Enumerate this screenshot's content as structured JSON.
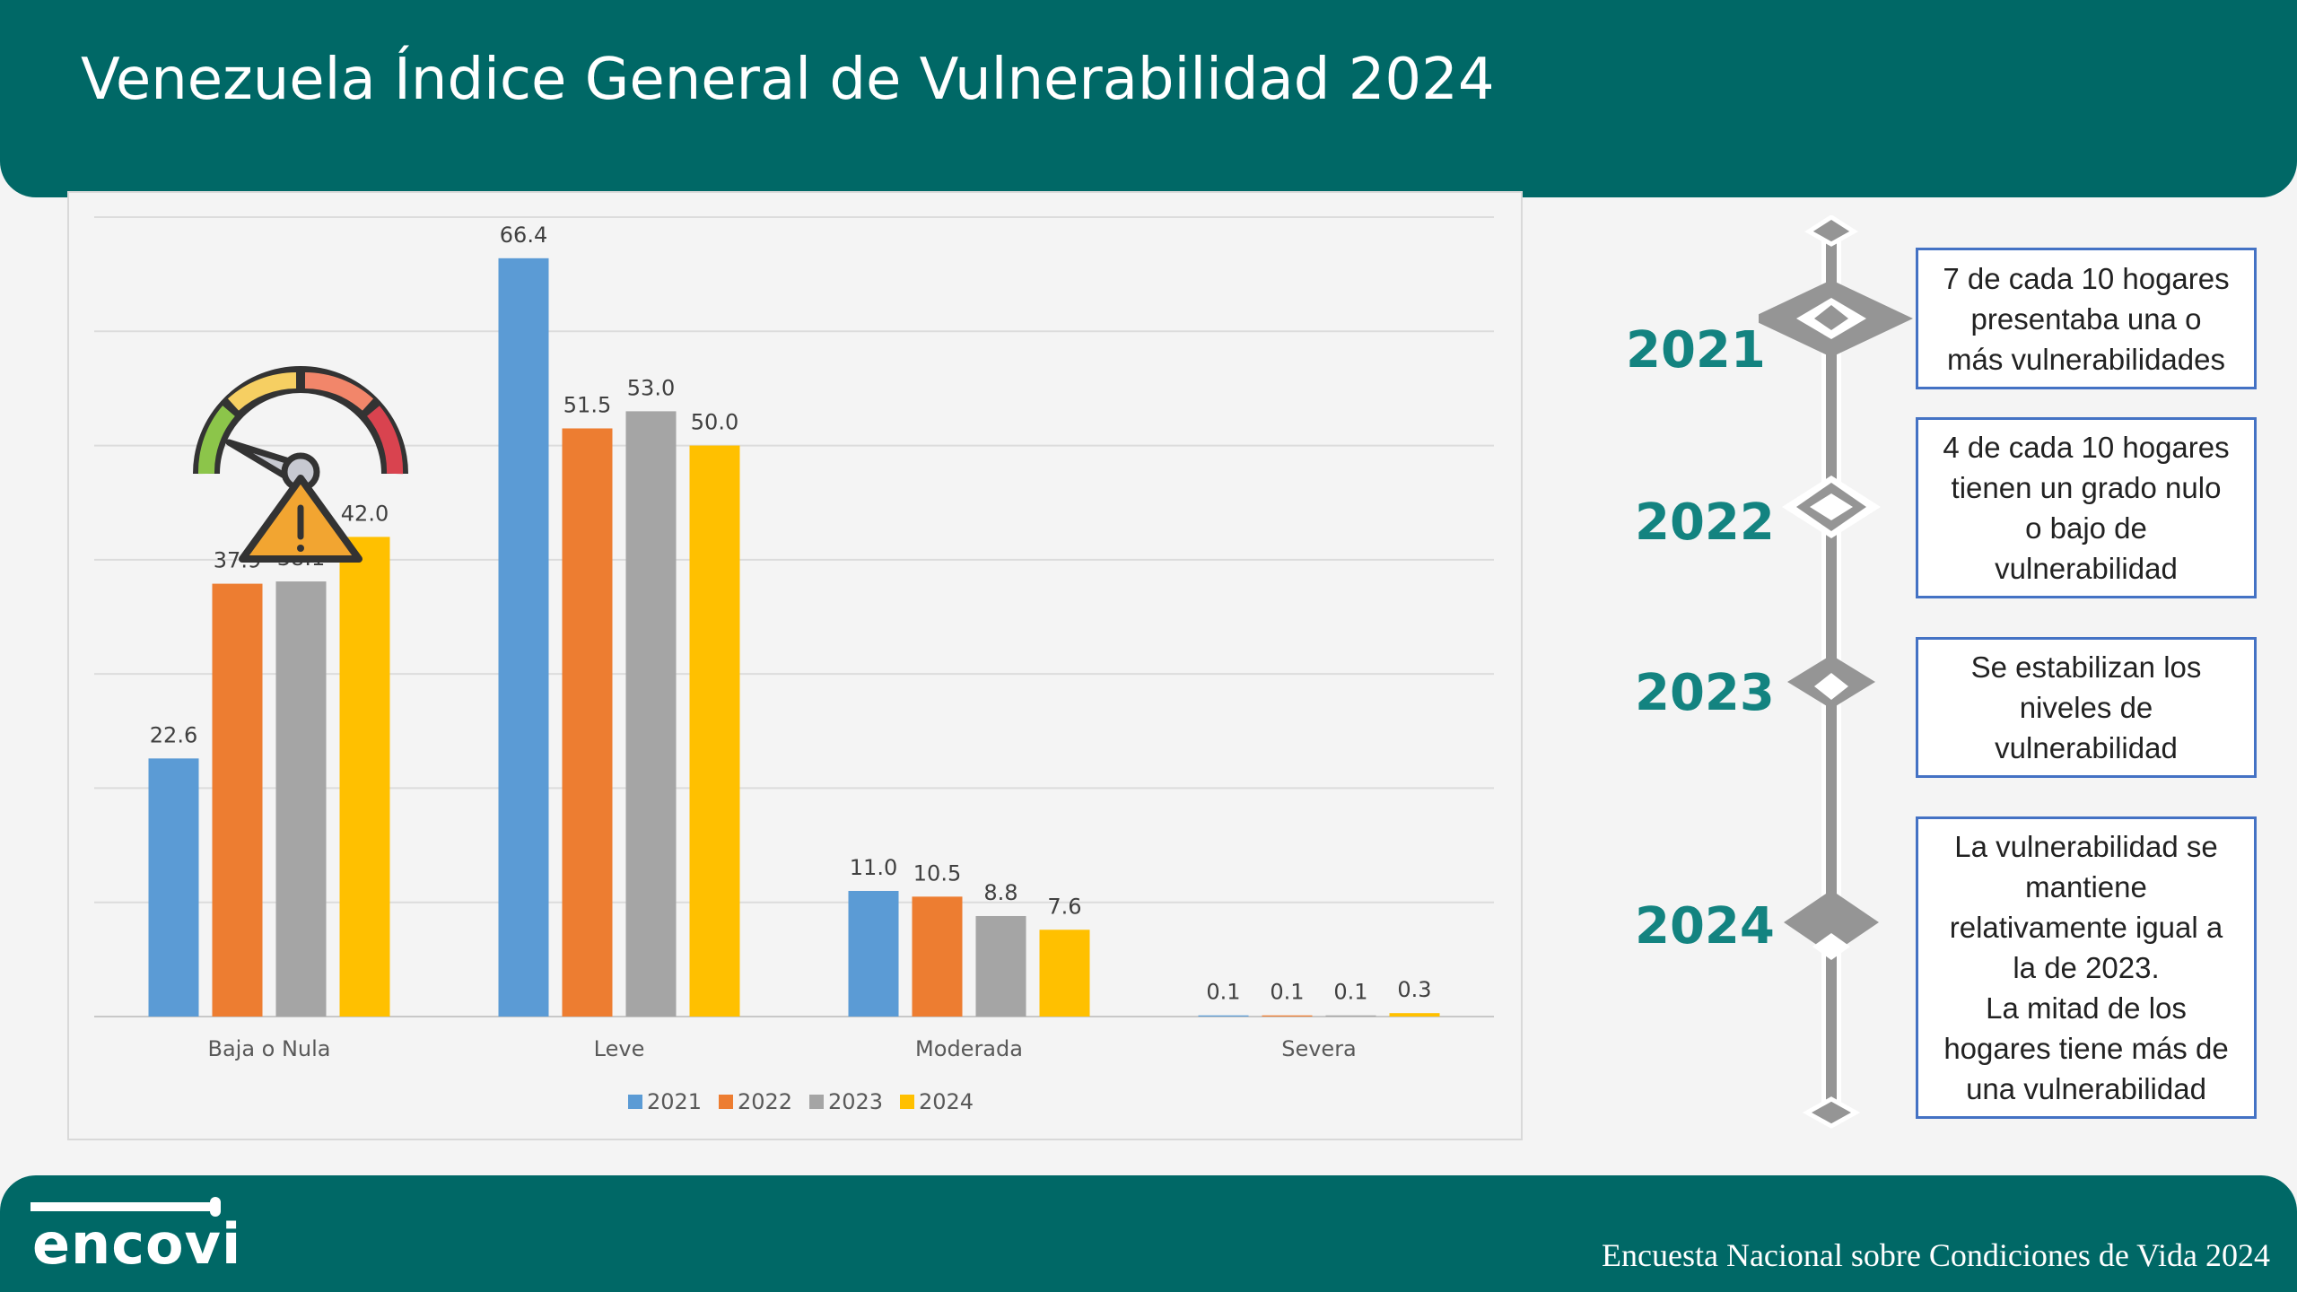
{
  "title": "Venezuela Índice General de Vulnerabilidad 2024",
  "chart_data": {
    "type": "bar",
    "categories": [
      "Baja o Nula",
      "Leve",
      "Moderada",
      "Severa"
    ],
    "series": [
      {
        "name": "2021",
        "color": "#5b9bd5",
        "values": [
          22.6,
          66.4,
          11.0,
          0.1
        ],
        "labels": [
          "22.6",
          "66.4",
          "11.0",
          "0.1"
        ]
      },
      {
        "name": "2022",
        "color": "#ed7d31",
        "values": [
          37.9,
          51.5,
          10.5,
          0.1
        ],
        "labels": [
          "37.9",
          "51.5",
          "10.5",
          "0.1"
        ]
      },
      {
        "name": "2023",
        "color": "#a5a5a5",
        "values": [
          38.1,
          53.0,
          8.8,
          0.1
        ],
        "labels": [
          "38.1",
          "53.0",
          "8.8",
          "0.1"
        ]
      },
      {
        "name": "2024",
        "color": "#ffc000",
        "values": [
          42.0,
          50.0,
          7.6,
          0.3
        ],
        "labels": [
          "42.0",
          "50.0",
          "7.6",
          "0.3"
        ]
      }
    ],
    "ylim": [
      0,
      70
    ],
    "grid": true,
    "legend": "bottom",
    "title": "",
    "xlabel": "",
    "ylabel": ""
  },
  "timeline": [
    {
      "year": "2021",
      "text": "7 de cada 10 hogares\npresentaba una o\nmás vulnerabilidades"
    },
    {
      "year": "2022",
      "text": "4 de cada 10 hogares\ntienen un grado nulo\no bajo de\nvulnerabilidad"
    },
    {
      "year": "2023",
      "text": "Se estabilizan los\nniveles de\nvulnerabilidad"
    },
    {
      "year": "2024",
      "text": "La vulnerabilidad se\nmantiene\nrelativamente igual a\nla de 2023.\nLa mitad de los\nhogares tiene más de\nuna vulnerabilidad"
    }
  ],
  "footer": {
    "logo": "encovi",
    "text": "Encuesta Nacional sobre Condiciones de Vida 2024"
  }
}
